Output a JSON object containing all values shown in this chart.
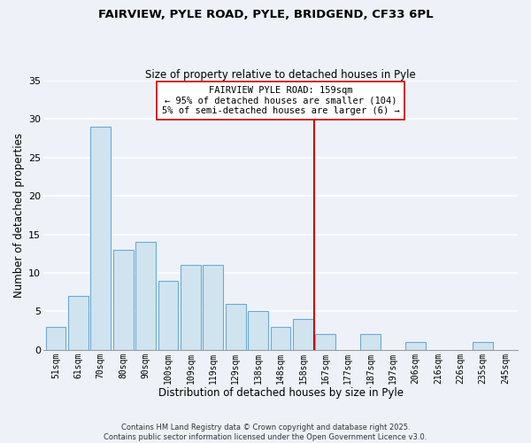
{
  "title_line1": "FAIRVIEW, PYLE ROAD, PYLE, BRIDGEND, CF33 6PL",
  "title_line2": "Size of property relative to detached houses in Pyle",
  "xlabel": "Distribution of detached houses by size in Pyle",
  "ylabel": "Number of detached properties",
  "bar_labels": [
    "51sqm",
    "61sqm",
    "70sqm",
    "80sqm",
    "90sqm",
    "100sqm",
    "109sqm",
    "119sqm",
    "129sqm",
    "138sqm",
    "148sqm",
    "158sqm",
    "167sqm",
    "177sqm",
    "187sqm",
    "197sqm",
    "206sqm",
    "216sqm",
    "226sqm",
    "235sqm",
    "245sqm"
  ],
  "bar_values": [
    3,
    7,
    29,
    13,
    14,
    9,
    11,
    11,
    6,
    5,
    3,
    4,
    2,
    0,
    2,
    0,
    1,
    0,
    0,
    1,
    0
  ],
  "bar_color": "#d0e4f0",
  "bar_edge_color": "#6aaad4",
  "vline_color": "#cc0000",
  "annotation_title": "FAIRVIEW PYLE ROAD: 159sqm",
  "annotation_line1": "← 95% of detached houses are smaller (104)",
  "annotation_line2": "5% of semi-detached houses are larger (6) →",
  "ylim": [
    0,
    35
  ],
  "yticks": [
    0,
    5,
    10,
    15,
    20,
    25,
    30,
    35
  ],
  "background_color": "#eef2f8",
  "plot_bg_color": "#eef2f8",
  "grid_color": "#ffffff",
  "footnote_line1": "Contains HM Land Registry data © Crown copyright and database right 2025.",
  "footnote_line2": "Contains public sector information licensed under the Open Government Licence v3.0."
}
